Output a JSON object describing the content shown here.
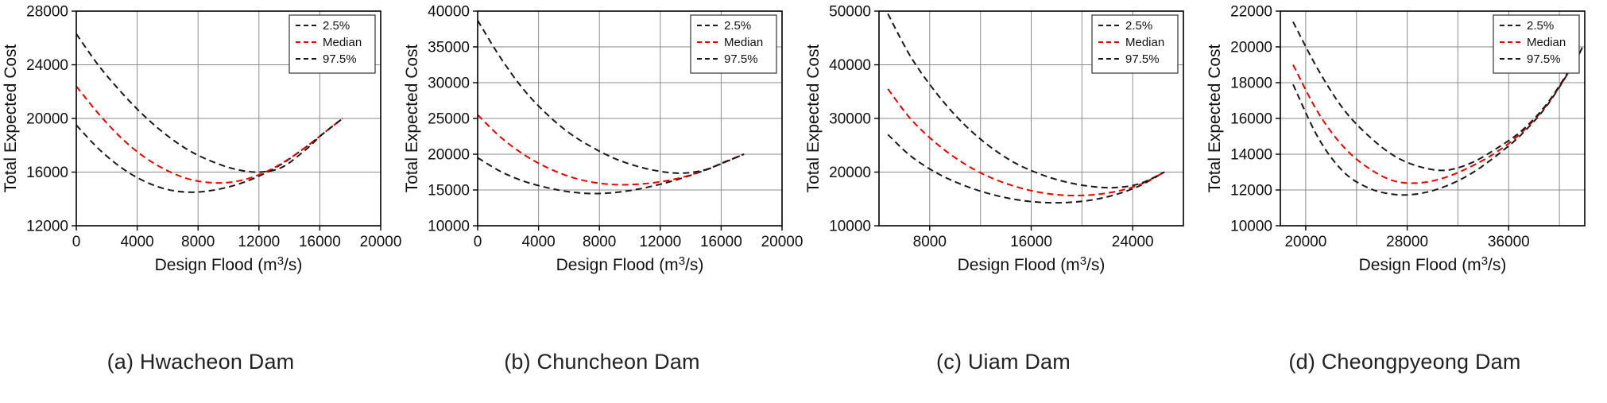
{
  "colors": {
    "black": "#1a1a1a",
    "red": "#e60000",
    "grid": "#8c8c8c",
    "axis": "#000000",
    "background": "#ffffff"
  },
  "legend": {
    "position": "top-right",
    "items": [
      "2.5%",
      "Median",
      "97.5%"
    ]
  },
  "chart_data": [
    {
      "id": "a",
      "type": "line",
      "caption": "(a) Hwacheon Dam",
      "xlabel": "Design Flood (m3/s)",
      "xlabel_parts": [
        "Design Flood (m",
        "3",
        "/s)"
      ],
      "ylabel": "Total Expected Cost",
      "xlim": [
        0,
        20000
      ],
      "ylim": [
        12000,
        28000
      ],
      "xticks": [
        0,
        4000,
        8000,
        12000,
        16000,
        20000
      ],
      "yticks": [
        12000,
        16000,
        20000,
        24000,
        28000
      ],
      "xgrid": [
        4000,
        8000,
        12000,
        16000
      ],
      "ygrid": [
        16000,
        20000,
        24000
      ],
      "grid": true,
      "legend_position": "top-right",
      "series": [
        {
          "name": "2.5%",
          "color": "#1a1a1a",
          "dash": "8 5",
          "x": [
            0,
            1500,
            3000,
            4500,
            6000,
            7500,
            9000,
            10500,
            12000,
            13500,
            15000,
            16200,
            17500
          ],
          "y": [
            19500,
            17700,
            16300,
            15300,
            14700,
            14500,
            14650,
            15050,
            15700,
            16600,
            17800,
            18850,
            20000
          ]
        },
        {
          "name": "Median",
          "color": "#e60000",
          "dash": "8 5",
          "x": [
            0,
            1500,
            3000,
            4500,
            6000,
            7500,
            9000,
            10500,
            12000,
            13500,
            15000,
            16200,
            17500
          ],
          "y": [
            22400,
            20300,
            18500,
            17100,
            16100,
            15450,
            15200,
            15300,
            15800,
            16650,
            17800,
            18850,
            20000
          ]
        },
        {
          "name": "97.5%",
          "color": "#1a1a1a",
          "dash": "8 5",
          "x": [
            0,
            1500,
            3000,
            4500,
            6000,
            7500,
            9000,
            10500,
            12000,
            13500,
            15000,
            16200,
            17500
          ],
          "y": [
            26300,
            23900,
            21900,
            20150,
            18700,
            17550,
            16750,
            16200,
            16000,
            16350,
            17600,
            18850,
            20000
          ]
        }
      ]
    },
    {
      "id": "b",
      "type": "line",
      "caption": "(b) Chuncheon Dam",
      "xlabel": "Design Flood (m3/s)",
      "xlabel_parts": [
        "Design Flood (m",
        "3",
        "/s)"
      ],
      "ylabel": "Total Expected Cost",
      "xlim": [
        0,
        20000
      ],
      "ylim": [
        10000,
        40000
      ],
      "xticks": [
        0,
        4000,
        8000,
        12000,
        16000,
        20000
      ],
      "yticks": [
        10000,
        15000,
        20000,
        25000,
        30000,
        35000,
        40000
      ],
      "xgrid": [
        4000,
        8000,
        12000,
        16000
      ],
      "ygrid": [
        15000,
        20000,
        25000,
        30000,
        35000
      ],
      "grid": true,
      "legend_position": "top-right",
      "series": [
        {
          "name": "2.5%",
          "color": "#1a1a1a",
          "dash": "8 5",
          "x": [
            0,
            1500,
            3000,
            4500,
            6000,
            7500,
            9000,
            10500,
            12000,
            13500,
            15000,
            16200,
            17500
          ],
          "y": [
            19500,
            17600,
            16250,
            15350,
            14750,
            14500,
            14650,
            15100,
            15800,
            16700,
            17800,
            18850,
            20000
          ]
        },
        {
          "name": "Median",
          "color": "#e60000",
          "dash": "8 5",
          "x": [
            0,
            1500,
            3000,
            4500,
            6000,
            7500,
            9000,
            10500,
            12000,
            13500,
            15000,
            16200,
            17500
          ],
          "y": [
            25500,
            22400,
            20000,
            18200,
            16900,
            16100,
            15750,
            15800,
            16150,
            16800,
            17850,
            18850,
            20000
          ]
        },
        {
          "name": "97.5%",
          "color": "#1a1a1a",
          "dash": "8 5",
          "x": [
            0,
            1500,
            3000,
            4500,
            6000,
            7500,
            9000,
            10500,
            12000,
            13500,
            15000,
            16200,
            17500
          ],
          "y": [
            38700,
            33500,
            29100,
            25700,
            23000,
            21000,
            19400,
            18300,
            17600,
            17350,
            17850,
            18900,
            20000
          ]
        }
      ]
    },
    {
      "id": "c",
      "type": "line",
      "caption": "(c) Uiam Dam",
      "xlabel": "Design Flood (m3/s)",
      "xlabel_parts": [
        "Design Flood (m",
        "3",
        "/s)"
      ],
      "ylabel": "Total Expected Cost",
      "xlim": [
        4000,
        28000
      ],
      "ylim": [
        10000,
        50000
      ],
      "xticks": [
        8000,
        16000,
        24000
      ],
      "yticks": [
        10000,
        20000,
        30000,
        40000,
        50000
      ],
      "xgrid": [
        8000,
        12000,
        16000,
        20000,
        24000
      ],
      "ygrid": [
        20000,
        30000,
        40000
      ],
      "grid": true,
      "legend_position": "top-right",
      "series": [
        {
          "name": "2.5%",
          "color": "#1a1a1a",
          "dash": "8 5",
          "x": [
            4700,
            6500,
            8500,
            10500,
            12500,
            14500,
            16500,
            18500,
            20500,
            22500,
            24500,
            26500
          ],
          "y": [
            27000,
            23000,
            19900,
            17700,
            16100,
            15000,
            14400,
            14300,
            14700,
            15700,
            17400,
            20000
          ]
        },
        {
          "name": "Median",
          "color": "#e60000",
          "dash": "8 5",
          "x": [
            4700,
            6500,
            8500,
            10500,
            12500,
            14500,
            16500,
            18500,
            20500,
            22500,
            24500,
            26500
          ],
          "y": [
            35500,
            29900,
            25400,
            21900,
            19300,
            17500,
            16300,
            15700,
            15700,
            16300,
            17600,
            20000
          ]
        },
        {
          "name": "97.5%",
          "color": "#1a1a1a",
          "dash": "8 5",
          "x": [
            4700,
            6500,
            8500,
            10500,
            12500,
            14500,
            16500,
            18500,
            20500,
            22500,
            24500,
            26500
          ],
          "y": [
            49500,
            41500,
            34800,
            29400,
            25200,
            22000,
            19800,
            18300,
            17400,
            17100,
            17800,
            20000
          ]
        }
      ]
    },
    {
      "id": "d",
      "type": "line",
      "caption": "(d) Cheongpyeong Dam",
      "xlabel": "Design Flood (m3/s)",
      "xlabel_parts": [
        "Design Flood (m",
        "3",
        "/s)"
      ],
      "ylabel": "Total Expected Cost",
      "xlim": [
        18000,
        42000
      ],
      "ylim": [
        10000,
        22000
      ],
      "xticks": [
        20000,
        28000,
        36000
      ],
      "yticks": [
        10000,
        12000,
        14000,
        16000,
        18000,
        20000,
        22000
      ],
      "xgrid": [
        20000,
        24000,
        28000,
        32000,
        36000,
        40000
      ],
      "ygrid": [
        12000,
        14000,
        16000,
        18000,
        20000
      ],
      "grid": true,
      "legend_position": "top-right",
      "series": [
        {
          "name": "2.5%",
          "color": "#1a1a1a",
          "dash": "8 5",
          "x": [
            19000,
            21000,
            23000,
            25000,
            27000,
            29000,
            31000,
            33000,
            35000,
            37000,
            39000,
            41000,
            41800
          ],
          "y": [
            17900,
            14900,
            13000,
            12100,
            11750,
            11800,
            12200,
            12900,
            13900,
            15100,
            16700,
            18900,
            19950
          ]
        },
        {
          "name": "Median",
          "color": "#e60000",
          "dash": "8 5",
          "x": [
            19000,
            21000,
            23000,
            25000,
            27000,
            29000,
            31000,
            33000,
            35000,
            37000,
            39000,
            41000,
            41800
          ],
          "y": [
            19000,
            16300,
            14400,
            13200,
            12500,
            12400,
            12700,
            13300,
            14100,
            15200,
            16750,
            18900,
            19950
          ]
        },
        {
          "name": "97.5%",
          "color": "#1a1a1a",
          "dash": "8 5",
          "x": [
            19000,
            21000,
            23000,
            25000,
            27000,
            29000,
            31000,
            33000,
            35000,
            37000,
            39000,
            41000,
            41800
          ],
          "y": [
            21400,
            18700,
            16500,
            15000,
            13900,
            13300,
            13100,
            13500,
            14300,
            15300,
            16800,
            18950,
            19950
          ]
        }
      ]
    }
  ]
}
